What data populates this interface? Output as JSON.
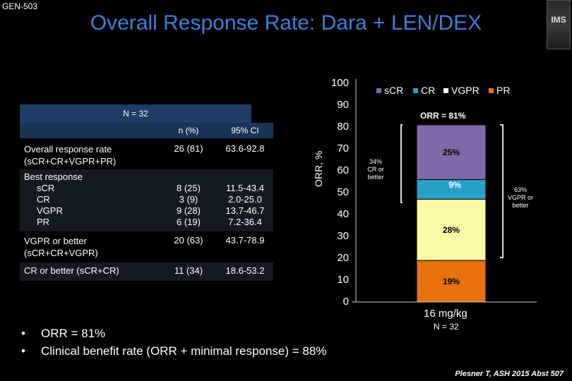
{
  "header": {
    "code": "GEN-503",
    "title": "Overall Response Rate: Dara + LEN/DEX",
    "logo_text": "IMS"
  },
  "table": {
    "n_label": "N = 32",
    "col_n": "n (%)",
    "col_ci": "95% CI",
    "rows": [
      {
        "label": "Overall response rate\n(sCR+CR+VGPR+PR)",
        "n": "26 (81)",
        "ci": "63.6-92.8"
      },
      {
        "label": "Best response",
        "sub": [
          "sCR",
          "CR",
          "VGPR",
          "PR"
        ],
        "n": [
          "8 (25)",
          "3 (9)",
          "9 (28)",
          "6 (19)"
        ],
        "ci": [
          "11.5-43.4",
          "2.0-25.0",
          "13.7-46.7",
          "7.2-36.4"
        ]
      },
      {
        "label": "VGPR or better\n(sCR+CR+VGPR)",
        "n": "20 (63)",
        "ci": "43.7-78.9"
      },
      {
        "label": "CR or better (sCR+CR)",
        "n": "11 (34)",
        "ci": "18.6-53.2"
      }
    ]
  },
  "chart_data": {
    "type": "bar",
    "stacked": true,
    "categories": [
      "16 mg/kg"
    ],
    "category_sub": "N = 32",
    "ylabel": "ORR, %",
    "ylim": [
      0,
      100
    ],
    "yticks": [
      0,
      10,
      20,
      30,
      40,
      50,
      60,
      70,
      80,
      90,
      100
    ],
    "series": [
      {
        "name": "PR",
        "values": [
          19
        ],
        "color": "#e8720c",
        "label": "19%"
      },
      {
        "name": "VGPR",
        "values": [
          28
        ],
        "color": "#fbf8a6",
        "label": "28%"
      },
      {
        "name": "CR",
        "values": [
          9
        ],
        "color": "#2aa0c9",
        "label": "9%"
      },
      {
        "name": "sCR",
        "values": [
          25
        ],
        "color": "#8268a8",
        "label": "25%"
      }
    ],
    "legend": [
      "sCR",
      "CR",
      "VGPR",
      "PR"
    ],
    "legend_colors": {
      "sCR": "#8268a8",
      "CR": "#2aa0c9",
      "VGPR": "#ffffff",
      "PR": "#e8720c"
    },
    "annotations": {
      "total": "ORR = 81%",
      "cr_or_better": "34%\nCR or\nbetter",
      "vgpr_or_better": "63%\nVGPR or\nbetter"
    }
  },
  "bullets": [
    "ORR = 81%",
    "Clinical benefit rate (ORR + minimal response) = 88%"
  ],
  "citation": "Plesner T, ASH 2015 Abst 507"
}
